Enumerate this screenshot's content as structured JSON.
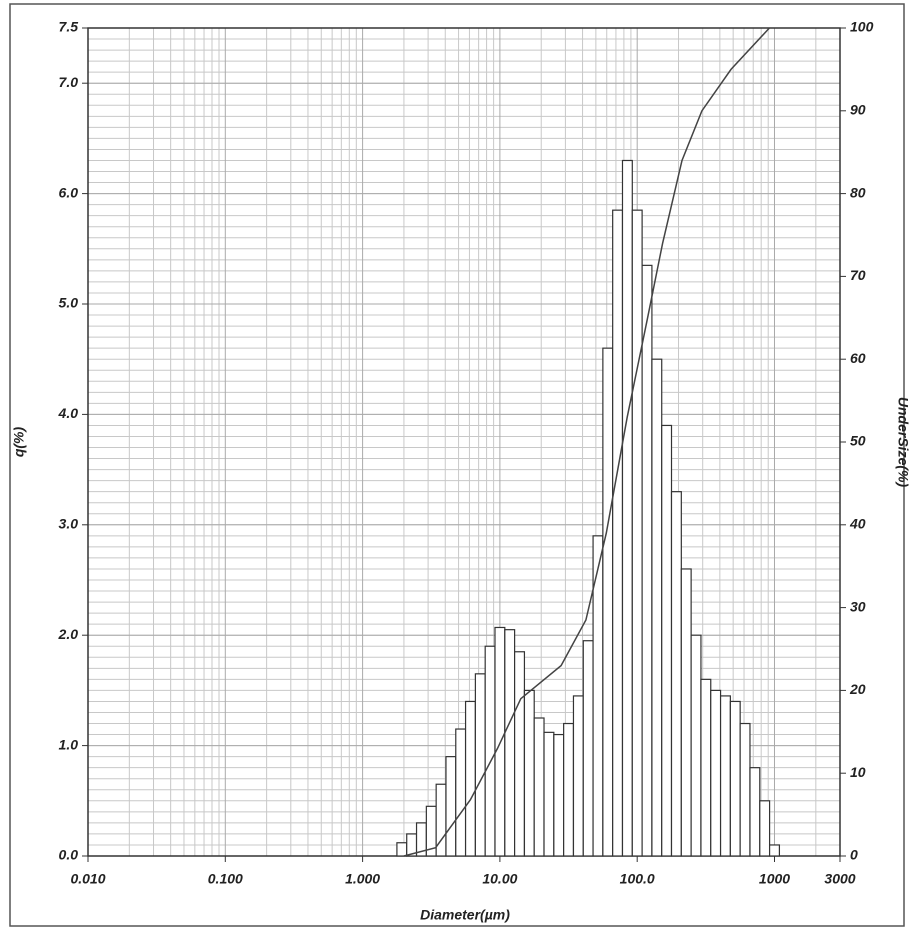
{
  "chart_data": {
    "type": "histogram",
    "y_label": "q(%)",
    "y2_label": "UnderSize(%)",
    "x_label": "Diameter(µm)",
    "log_x": true,
    "grid": true,
    "minor_grid": true,
    "color": "#ffffff",
    "edge_color": "#333333",
    "line_color": "#444444",
    "xlim": [
      0.01,
      3000
    ],
    "xticks": [
      {
        "value": 0.01,
        "label": "0.010"
      },
      {
        "value": 0.1,
        "label": "0.100"
      },
      {
        "value": 1,
        "label": "1.000"
      },
      {
        "value": 10,
        "label": "10.00"
      },
      {
        "value": 100,
        "label": "100.0"
      },
      1000,
      3000
    ],
    "ylim": [
      0,
      7.5
    ],
    "yticks": [
      {
        "value": 0,
        "label": "0.0"
      },
      {
        "value": 1,
        "label": "1.0"
      },
      {
        "value": 2,
        "label": "2.0"
      },
      {
        "value": 3,
        "label": "3.0"
      },
      {
        "value": 4,
        "label": "4.0"
      },
      {
        "value": 5,
        "label": "5.0"
      },
      {
        "value": 6,
        "label": "6.0"
      },
      {
        "value": 7,
        "label": "7.0"
      },
      7.5
    ],
    "y2lim": [
      0,
      100
    ],
    "y2ticks": [
      0,
      10,
      20,
      30,
      40,
      50,
      60,
      70,
      80,
      90,
      100
    ],
    "bins": [
      1.778,
      2.096,
      2.471,
      2.913,
      3.434,
      4.048,
      4.771,
      5.623,
      6.629,
      7.814,
      9.211,
      10.86,
      12.8,
      15.09,
      17.78,
      20.96,
      24.71,
      29.13,
      34.34,
      40.48,
      47.71,
      56.23,
      66.29,
      78.14,
      92.11,
      108.6,
      128,
      150.9,
      177.8,
      209.6,
      247.1,
      291.3,
      343.4,
      404.8,
      477.1,
      562.3,
      662.9,
      781.4,
      921.1,
      1086
    ],
    "values": [
      0.12,
      0.2,
      0.3,
      0.45,
      0.65,
      0.9,
      1.15,
      1.4,
      1.65,
      1.9,
      2.07,
      2.05,
      1.85,
      1.5,
      1.25,
      1.12,
      1.1,
      1.2,
      1.45,
      1.95,
      2.9,
      4.6,
      5.85,
      6.3,
      5.85,
      5.35,
      4.5,
      3.9,
      3.3,
      2.6,
      2.0,
      1.6,
      1.5,
      1.45,
      1.4,
      1.2,
      0.8,
      0.5,
      0.1
    ],
    "line": {
      "axis": "y2",
      "x": [
        2.0,
        3.4,
        6.1,
        9.6,
        14.2,
        27.9,
        42.3,
        59.6,
        84.5,
        119,
        153,
        212,
        296,
        482,
        918
      ],
      "values": [
        0,
        1,
        6.8,
        13,
        19,
        23,
        28.5,
        39,
        53,
        65,
        74,
        84,
        90,
        95,
        100
      ]
    }
  }
}
